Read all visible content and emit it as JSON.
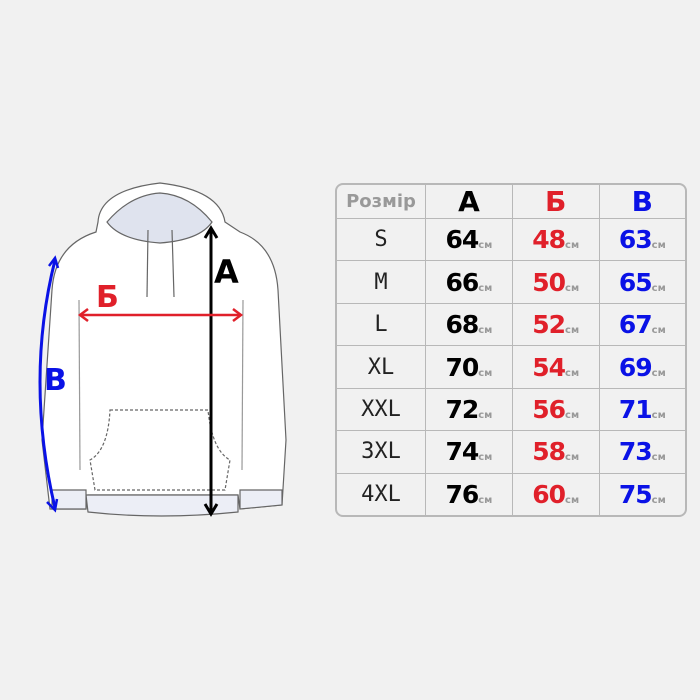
{
  "labels": {
    "a": "А",
    "b": "Б",
    "v": "В"
  },
  "colors": {
    "a": "#000000",
    "b": "#e0202a",
    "v": "#0a12e6"
  },
  "table": {
    "header": {
      "size": "Розмір",
      "a": "А",
      "b": "Б",
      "v": "В"
    },
    "unit": "см",
    "rows": [
      {
        "size": "S",
        "a": "64",
        "b": "48",
        "v": "63"
      },
      {
        "size": "M",
        "a": "66",
        "b": "50",
        "v": "65"
      },
      {
        "size": "L",
        "a": "68",
        "b": "52",
        "v": "67"
      },
      {
        "size": "XL",
        "a": "70",
        "b": "54",
        "v": "69"
      },
      {
        "size": "XXL",
        "a": "72",
        "b": "56",
        "v": "71"
      },
      {
        "size": "3XL",
        "a": "74",
        "b": "58",
        "v": "73"
      },
      {
        "size": "4XL",
        "a": "76",
        "b": "60",
        "v": "75"
      }
    ]
  }
}
